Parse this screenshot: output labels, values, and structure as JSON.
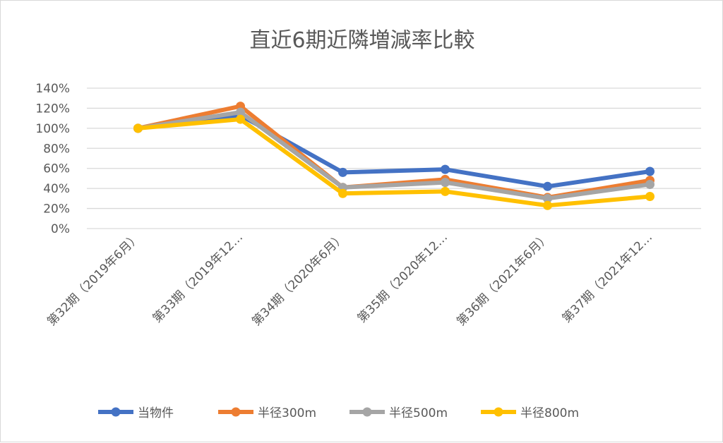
{
  "chart_data": {
    "type": "line",
    "title": "直近6期近隣増減率比較",
    "categories": [
      "第32期（2019年6月）",
      "第33期（2019年12…",
      "第34期（2020年6月）",
      "第35期（2020年12…",
      "第36期（2021年6月）",
      "第37期（2021年12…"
    ],
    "y_ticks": [
      "0%",
      "20%",
      "40%",
      "60%",
      "80%",
      "100%",
      "120%",
      "140%"
    ],
    "ylim": [
      0,
      140
    ],
    "y_unit": "%",
    "grid": true,
    "legend": "bottom",
    "series": [
      {
        "name": "当物件",
        "color": "#4472C4",
        "values": [
          100,
          113,
          56,
          59,
          42,
          57
        ]
      },
      {
        "name": "半径300m",
        "color": "#ED7D31",
        "values": [
          100,
          122,
          41,
          49,
          31,
          48
        ]
      },
      {
        "name": "半径500m",
        "color": "#A5A5A5",
        "values": [
          100,
          116,
          41,
          46,
          30,
          44
        ]
      },
      {
        "name": "半径800m",
        "color": "#FFC000",
        "values": [
          100,
          109,
          35,
          37,
          23,
          32
        ]
      }
    ]
  }
}
